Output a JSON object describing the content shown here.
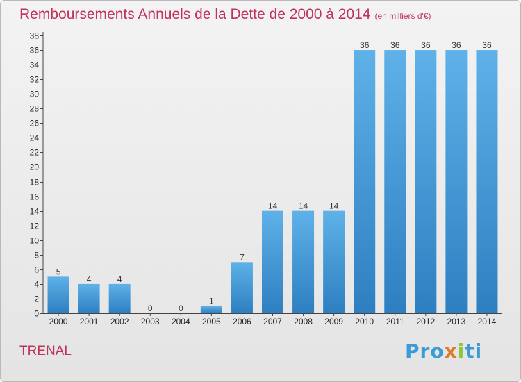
{
  "header": {
    "title": "Remboursements Annuels de la Dette de 2000 à 2014",
    "unit": "(en milliers d'€)"
  },
  "footer": {
    "town": "TRENAL",
    "logo_parts": [
      "Pro",
      "x",
      "i",
      "ti"
    ]
  },
  "colors": {
    "bar_top": "#5fb1e8",
    "bar_bottom": "#2d7fc1",
    "title": "#c0325a"
  },
  "chart_data": {
    "type": "bar",
    "title": "Remboursements Annuels de la Dette de 2000 à 2014",
    "xlabel": "",
    "ylabel": "",
    "categories": [
      "2000",
      "2001",
      "2002",
      "2003",
      "2004",
      "2005",
      "2006",
      "2007",
      "2008",
      "2009",
      "2010",
      "2011",
      "2012",
      "2013",
      "2014"
    ],
    "values": [
      5,
      4,
      4,
      0,
      0,
      1,
      7,
      14,
      14,
      14,
      36,
      36,
      36,
      36,
      36
    ],
    "ylim": [
      0,
      38
    ],
    "yticks": [
      0,
      2,
      4,
      6,
      8,
      10,
      12,
      14,
      16,
      18,
      20,
      22,
      24,
      26,
      28,
      30,
      32,
      34,
      36,
      38
    ],
    "grid": false,
    "data_labels": true
  }
}
